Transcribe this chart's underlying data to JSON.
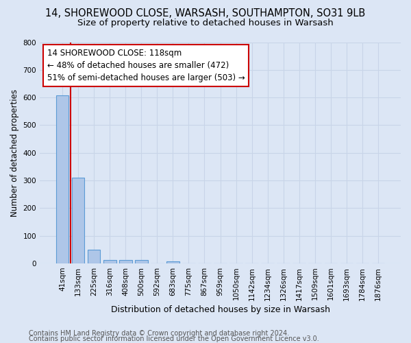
{
  "title1": "14, SHOREWOOD CLOSE, WARSASH, SOUTHAMPTON, SO31 9LB",
  "title2": "Size of property relative to detached houses in Warsash",
  "xlabel": "Distribution of detached houses by size in Warsash",
  "ylabel": "Number of detached properties",
  "footer1": "Contains HM Land Registry data © Crown copyright and database right 2024.",
  "footer2": "Contains public sector information licensed under the Open Government Licence v3.0.",
  "categories": [
    "41sqm",
    "133sqm",
    "225sqm",
    "316sqm",
    "408sqm",
    "500sqm",
    "592sqm",
    "683sqm",
    "775sqm",
    "867sqm",
    "959sqm",
    "1050sqm",
    "1142sqm",
    "1234sqm",
    "1326sqm",
    "1417sqm",
    "1509sqm",
    "1601sqm",
    "1693sqm",
    "1784sqm",
    "1876sqm"
  ],
  "values": [
    607,
    311,
    50,
    12,
    13,
    13,
    0,
    8,
    0,
    0,
    0,
    0,
    0,
    0,
    0,
    0,
    0,
    0,
    0,
    0,
    0
  ],
  "bar_color": "#aec6e8",
  "bar_edge_color": "#5b9bd5",
  "highlight_line_color": "#cc0000",
  "annotation_line1": "14 SHOREWOOD CLOSE: 118sqm",
  "annotation_line2": "← 48% of detached houses are smaller (472)",
  "annotation_line3": "51% of semi-detached houses are larger (503) →",
  "annotation_box_color": "#ffffff",
  "annotation_box_edge_color": "#cc0000",
  "ylim": [
    0,
    800
  ],
  "yticks": [
    0,
    100,
    200,
    300,
    400,
    500,
    600,
    700,
    800
  ],
  "grid_color": "#c8d4e8",
  "background_color": "#dce6f5",
  "title1_fontsize": 10.5,
  "title2_fontsize": 9.5,
  "tick_fontsize": 7.5,
  "ylabel_fontsize": 8.5,
  "xlabel_fontsize": 9,
  "annotation_fontsize": 8.5,
  "footer_fontsize": 7
}
